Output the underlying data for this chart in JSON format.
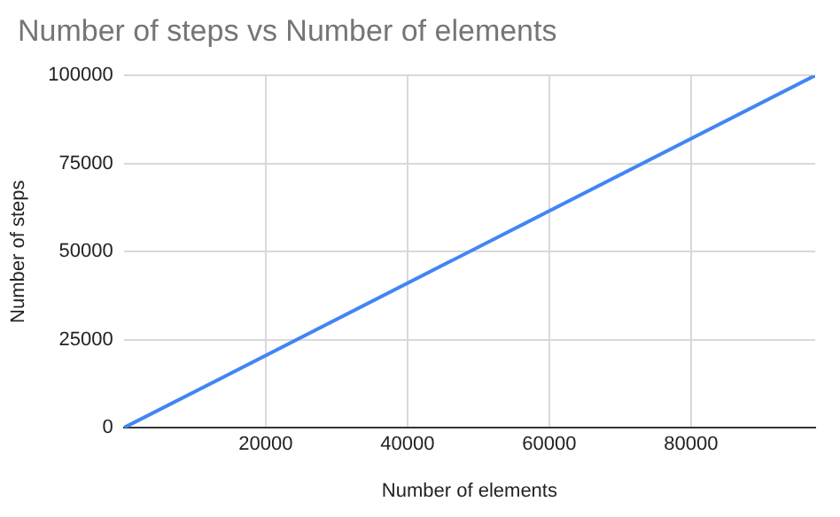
{
  "chart_data": {
    "type": "line",
    "title": "Number of steps vs Number of elements",
    "xlabel": "Number of elements",
    "ylabel": "Number of steps",
    "x": [
      0,
      97500
    ],
    "series": [
      {
        "color": "#4285f4",
        "values": [
          0,
          100000
        ]
      }
    ],
    "xlim": [
      0,
      97500
    ],
    "xticks": [
      20000,
      40000,
      60000,
      80000
    ],
    "ylim": [
      0,
      100000
    ],
    "yticks": [
      0,
      25000,
      50000,
      75000,
      100000
    ],
    "grid": true,
    "legend": false,
    "marker": "none",
    "line_style": "solid"
  }
}
